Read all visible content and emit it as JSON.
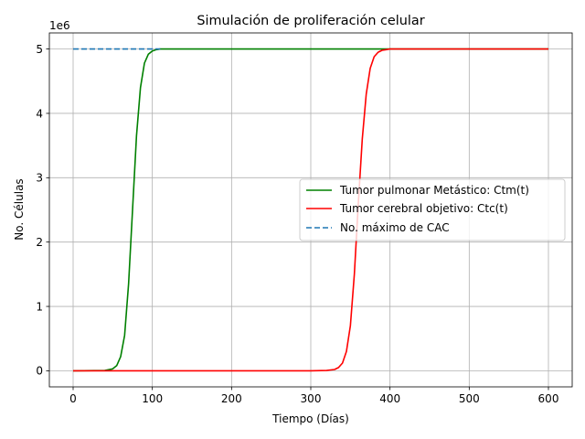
{
  "chart_data": {
    "type": "line",
    "title": "Simulación de proliferación celular",
    "xlabel": "Tiempo (Días)",
    "ylabel": "No. Células",
    "y_multiplier_label": "1e6",
    "xlim": [
      -30,
      630
    ],
    "ylim": [
      -0.25,
      5.25
    ],
    "x_ticks": [
      0,
      100,
      200,
      300,
      400,
      500,
      600
    ],
    "y_ticks": [
      0,
      1,
      2,
      3,
      4,
      5
    ],
    "grid": true,
    "legend_position": "center-right",
    "series": [
      {
        "name": "Tumor pulmonar Metástico: Ctm(t)",
        "color": "#008000",
        "dash": "solid",
        "x": [
          0,
          40,
          50,
          55,
          60,
          65,
          70,
          75,
          80,
          85,
          90,
          95,
          100,
          105,
          110,
          120,
          200,
          300,
          400,
          500,
          600
        ],
        "values": [
          0.0,
          0.005,
          0.03,
          0.08,
          0.22,
          0.55,
          1.35,
          2.5,
          3.65,
          4.4,
          4.78,
          4.92,
          4.97,
          4.99,
          5.0,
          5.0,
          5.0,
          5.0,
          5.0,
          5.0,
          5.0
        ]
      },
      {
        "name": "Tumor cerebral objetivo: Ctc(t)",
        "color": "#ff0000",
        "dash": "solid",
        "x": [
          0,
          100,
          200,
          300,
          320,
          330,
          335,
          340,
          345,
          350,
          355,
          360,
          365,
          370,
          375,
          380,
          385,
          390,
          395,
          400,
          410,
          500,
          600
        ],
        "values": [
          0.0,
          0.0,
          0.0,
          0.0,
          0.005,
          0.02,
          0.05,
          0.12,
          0.3,
          0.7,
          1.5,
          2.6,
          3.6,
          4.3,
          4.7,
          4.88,
          4.95,
          4.98,
          4.99,
          5.0,
          5.0,
          5.0,
          5.0
        ]
      },
      {
        "name": "No. máximo de CAC",
        "color": "#1f77b4",
        "dash": "dashed",
        "x": [
          0,
          110
        ],
        "values": [
          5.0,
          5.0
        ]
      }
    ]
  }
}
